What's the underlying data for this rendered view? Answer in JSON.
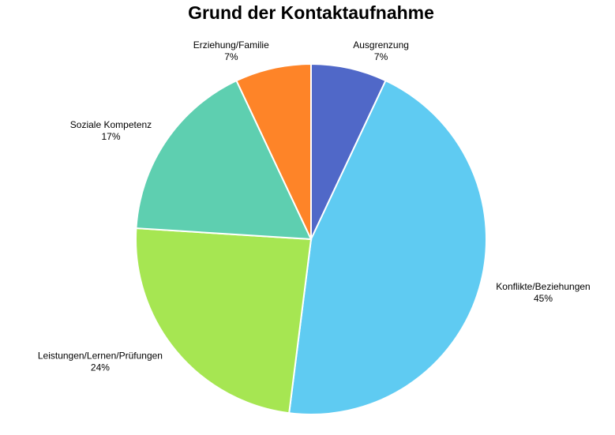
{
  "chart_data": {
    "type": "pie",
    "title": "Grund der Kontaktaufnahme",
    "categories": [
      "Ausgrenzung",
      "Konflikte/Beziehungen",
      "Leistungen/Lernen/Prüfungen",
      "Soziale Kompetenz",
      "Erziehung/Familie"
    ],
    "values": [
      7,
      45,
      24,
      17,
      7
    ],
    "value_labels": [
      "7%",
      "45%",
      "24%",
      "17%",
      "7%"
    ],
    "colors": [
      "#5068c8",
      "#5fcbf2",
      "#a6e652",
      "#5ecfb0",
      "#fe8428"
    ]
  }
}
